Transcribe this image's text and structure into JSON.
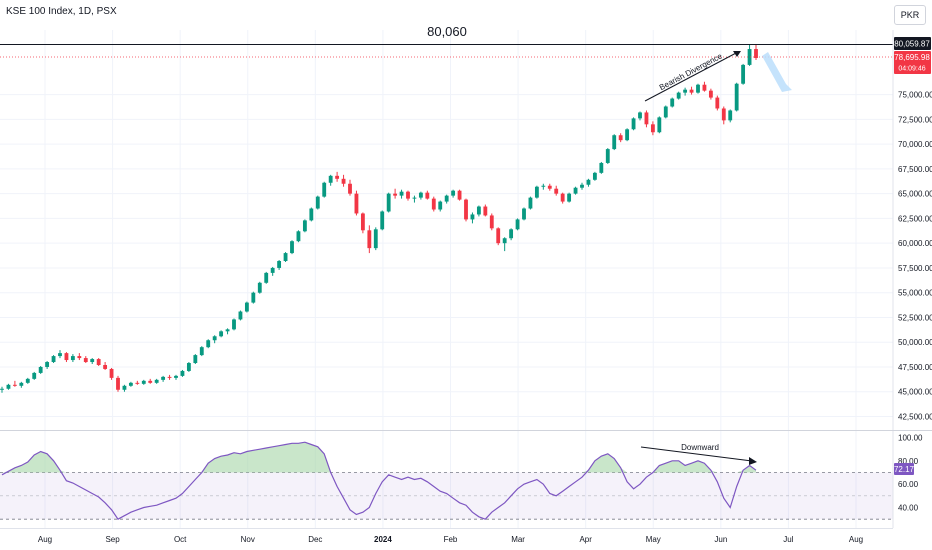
{
  "title": "KSE 100 Index, 1D, PSX",
  "currency_button": "PKR",
  "chart_data": {
    "type": "candlestick",
    "x_ticks": [
      "Aug",
      "Sep",
      "Oct",
      "Nov",
      "Dec",
      "2024",
      "Feb",
      "Mar",
      "Apr",
      "May",
      "Jun",
      "Jul",
      "Aug"
    ],
    "price_axis": {
      "ticks": [
        "75,000.00",
        "72,500.00",
        "70,000.00",
        "67,500.00",
        "65,000.00",
        "62,500.00",
        "60,000.00",
        "57,500.00",
        "55,000.00",
        "52,500.00",
        "50,000.00",
        "47,500.00",
        "45,000.00",
        "42,500.00"
      ],
      "ylim": [
        41000,
        82000
      ]
    },
    "resistance": {
      "value": 80060,
      "label": "80,060",
      "tag": "80,059.87"
    },
    "last_price": {
      "value": 78695.98,
      "label": "78,695.98",
      "countdown": "04:09:46"
    },
    "annotations": {
      "price_divergence": "Bearish Divergence",
      "rsi_trend": "Downward"
    },
    "rsi": {
      "ticks": [
        "100.00",
        "80.00",
        "60.00",
        "40.00"
      ],
      "current": "72.17",
      "upper_band": 70,
      "lower_band": 30,
      "ylim": [
        25,
        105
      ]
    },
    "candles": [
      [
        45200,
        45500,
        44900,
        45300
      ],
      [
        45300,
        45800,
        45200,
        45700
      ],
      [
        45700,
        46100,
        45500,
        45600
      ],
      [
        45600,
        46000,
        45400,
        45900
      ],
      [
        45900,
        46400,
        45800,
        46300
      ],
      [
        46300,
        47000,
        46200,
        46900
      ],
      [
        46900,
        47600,
        46800,
        47500
      ],
      [
        47500,
        48100,
        47300,
        48000
      ],
      [
        48000,
        48700,
        47900,
        48600
      ],
      [
        48600,
        49200,
        48400,
        48900
      ],
      [
        48900,
        49000,
        48000,
        48200
      ],
      [
        48200,
        48800,
        48000,
        48600
      ],
      [
        48600,
        48900,
        48200,
        48400
      ],
      [
        48400,
        48600,
        47900,
        48000
      ],
      [
        48000,
        48400,
        47800,
        48300
      ],
      [
        48300,
        48400,
        47600,
        47700
      ],
      [
        47700,
        48000,
        47200,
        47300
      ],
      [
        47300,
        47400,
        46200,
        46400
      ],
      [
        46400,
        46600,
        45000,
        45200
      ],
      [
        45200,
        45700,
        45000,
        45600
      ],
      [
        45600,
        46000,
        45500,
        45900
      ],
      [
        45900,
        46100,
        45700,
        45800
      ],
      [
        45800,
        46200,
        45700,
        46100
      ],
      [
        46100,
        46300,
        45800,
        45900
      ],
      [
        45900,
        46300,
        45800,
        46200
      ],
      [
        46200,
        46600,
        46000,
        46500
      ],
      [
        46500,
        46700,
        46200,
        46400
      ],
      [
        46400,
        46700,
        46200,
        46600
      ],
      [
        46600,
        47200,
        46500,
        47100
      ],
      [
        47100,
        48000,
        47000,
        47900
      ],
      [
        47900,
        48800,
        47800,
        48700
      ],
      [
        48700,
        49600,
        48600,
        49500
      ],
      [
        49500,
        50300,
        49400,
        50200
      ],
      [
        50200,
        50700,
        49900,
        50600
      ],
      [
        50600,
        51200,
        50500,
        51100
      ],
      [
        51100,
        51400,
        50800,
        51300
      ],
      [
        51300,
        52400,
        51200,
        52300
      ],
      [
        52300,
        53200,
        52200,
        53100
      ],
      [
        53100,
        54100,
        53000,
        54000
      ],
      [
        54000,
        55100,
        53900,
        55000
      ],
      [
        55000,
        56100,
        54900,
        56000
      ],
      [
        56000,
        57100,
        55900,
        57000
      ],
      [
        57000,
        57600,
        56700,
        57500
      ],
      [
        57500,
        58300,
        57300,
        58200
      ],
      [
        58200,
        59100,
        58100,
        59000
      ],
      [
        59000,
        60300,
        58900,
        60200
      ],
      [
        60200,
        61300,
        60100,
        61200
      ],
      [
        61200,
        62400,
        61100,
        62300
      ],
      [
        62300,
        63600,
        62200,
        63500
      ],
      [
        63500,
        64800,
        63400,
        64700
      ],
      [
        64700,
        66200,
        64600,
        66100
      ],
      [
        66100,
        66900,
        65800,
        66800
      ],
      [
        66800,
        67200,
        66200,
        66500
      ],
      [
        66500,
        66900,
        65700,
        66000
      ],
      [
        66000,
        66400,
        64800,
        65000
      ],
      [
        65000,
        65300,
        62800,
        63000
      ],
      [
        63000,
        63100,
        61000,
        61300
      ],
      [
        61300,
        61800,
        59000,
        59500
      ],
      [
        59500,
        61600,
        59300,
        61400
      ],
      [
        61400,
        63300,
        61300,
        63200
      ],
      [
        63200,
        65100,
        63100,
        65000
      ],
      [
        65000,
        65500,
        64500,
        64800
      ],
      [
        64800,
        65400,
        64500,
        65200
      ],
      [
        65200,
        65300,
        64300,
        64500
      ],
      [
        64500,
        64800,
        64100,
        64600
      ],
      [
        64600,
        65200,
        64400,
        65100
      ],
      [
        65100,
        65300,
        64400,
        64500
      ],
      [
        64500,
        64700,
        63200,
        63400
      ],
      [
        63400,
        64300,
        63200,
        64200
      ],
      [
        64200,
        64900,
        64000,
        64800
      ],
      [
        64800,
        65400,
        64600,
        65300
      ],
      [
        65300,
        65400,
        64300,
        64400
      ],
      [
        64400,
        64500,
        62200,
        62400
      ],
      [
        62400,
        63100,
        62000,
        62900
      ],
      [
        62900,
        63800,
        62700,
        63700
      ],
      [
        63700,
        63900,
        62700,
        62800
      ],
      [
        62800,
        63000,
        61300,
        61500
      ],
      [
        61500,
        61600,
        59800,
        60000
      ],
      [
        60000,
        60600,
        59200,
        60500
      ],
      [
        60500,
        61500,
        60300,
        61400
      ],
      [
        61400,
        62500,
        61300,
        62400
      ],
      [
        62400,
        63600,
        62300,
        63500
      ],
      [
        63500,
        64700,
        63400,
        64600
      ],
      [
        64600,
        65800,
        64500,
        65700
      ],
      [
        65700,
        66000,
        65400,
        65800
      ],
      [
        65800,
        66000,
        65300,
        65500
      ],
      [
        65500,
        65800,
        64800,
        65000
      ],
      [
        65000,
        65100,
        64000,
        64200
      ],
      [
        64200,
        65100,
        64100,
        65000
      ],
      [
        65000,
        65700,
        64900,
        65600
      ],
      [
        65600,
        66100,
        65400,
        65900
      ],
      [
        65900,
        66500,
        65700,
        66400
      ],
      [
        66400,
        67200,
        66300,
        67100
      ],
      [
        67100,
        68200,
        67000,
        68100
      ],
      [
        68100,
        69600,
        68000,
        69500
      ],
      [
        69500,
        71000,
        69400,
        70900
      ],
      [
        70900,
        71100,
        70200,
        70400
      ],
      [
        70400,
        71600,
        70300,
        71500
      ],
      [
        71500,
        72700,
        71400,
        72600
      ],
      [
        72600,
        73300,
        72400,
        73200
      ],
      [
        73200,
        73400,
        71700,
        72000
      ],
      [
        72000,
        72300,
        70900,
        71200
      ],
      [
        71200,
        72800,
        71100,
        72700
      ],
      [
        72700,
        73900,
        72600,
        73800
      ],
      [
        73800,
        74700,
        73700,
        74600
      ],
      [
        74600,
        75300,
        74500,
        75200
      ],
      [
        75200,
        75700,
        74900,
        75500
      ],
      [
        75500,
        75800,
        75000,
        75200
      ],
      [
        75200,
        76100,
        75100,
        76000
      ],
      [
        76000,
        76300,
        75300,
        75400
      ],
      [
        75400,
        75600,
        74500,
        74700
      ],
      [
        74700,
        74900,
        73400,
        73600
      ],
      [
        73600,
        73800,
        72000,
        72400
      ],
      [
        72400,
        73500,
        72200,
        73400
      ],
      [
        73400,
        76200,
        73300,
        76100
      ],
      [
        76100,
        78100,
        76000,
        78000
      ],
      [
        78000,
        80060,
        77900,
        79600
      ],
      [
        79600,
        80060,
        78500,
        78696
      ]
    ],
    "rsi_values": [
      68,
      71,
      74,
      76,
      79,
      85,
      88,
      86,
      80,
      72,
      63,
      61,
      58,
      55,
      52,
      49,
      44,
      38,
      30,
      33,
      36,
      38,
      40,
      41,
      42,
      44,
      46,
      48,
      52,
      58,
      64,
      70,
      78,
      82,
      84,
      85,
      87,
      86,
      88,
      89,
      90,
      91,
      92,
      93,
      94,
      95,
      95,
      96,
      94,
      92,
      86,
      70,
      58,
      48,
      38,
      34,
      36,
      40,
      52,
      62,
      68,
      66,
      64,
      66,
      64,
      65,
      62,
      58,
      54,
      52,
      48,
      44,
      42,
      36,
      32,
      30,
      36,
      40,
      44,
      50,
      56,
      60,
      62,
      64,
      60,
      52,
      50,
      54,
      58,
      62,
      66,
      72,
      80,
      84,
      86,
      82,
      74,
      62,
      56,
      60,
      66,
      70,
      76,
      78,
      80,
      80,
      76,
      78,
      80,
      78,
      72,
      62,
      48,
      40,
      58,
      72,
      76,
      72
    ]
  }
}
